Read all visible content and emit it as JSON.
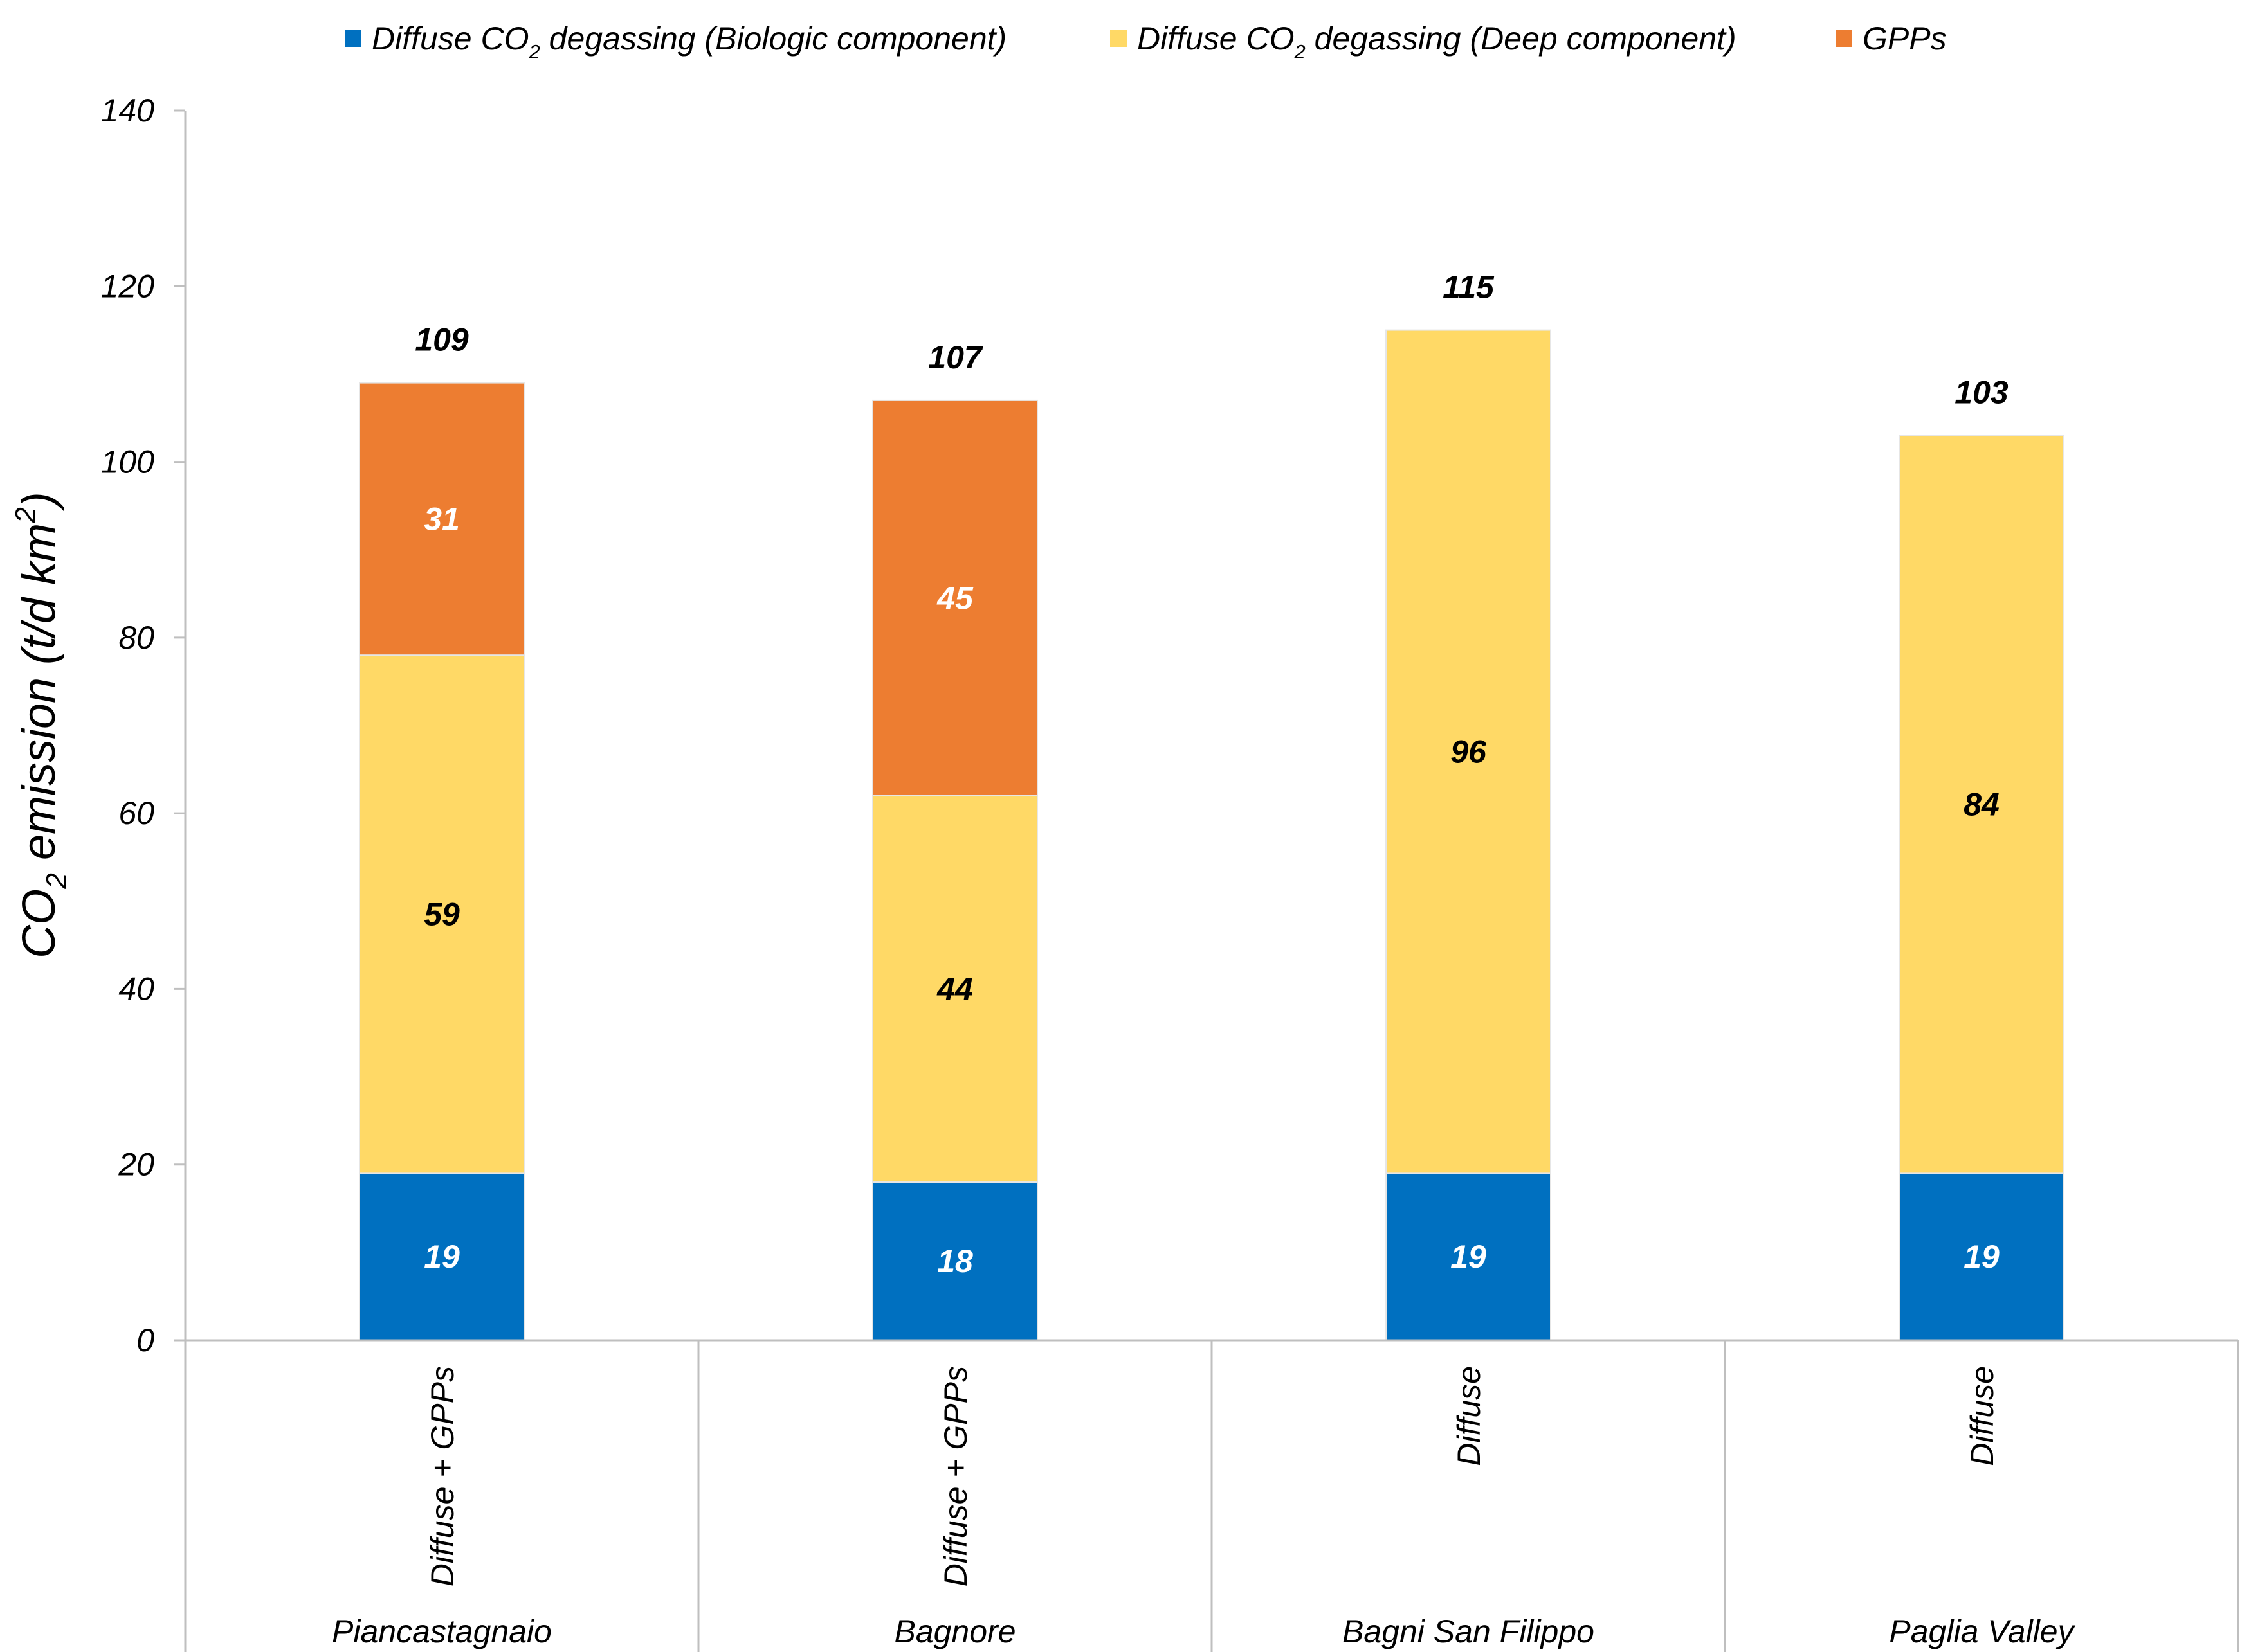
{
  "chart_data": {
    "type": "bar",
    "stacked": true,
    "title": "",
    "xlabel": "",
    "ylabel": {
      "prefix": "CO",
      "subscript": "2",
      "middle": " emission (t/d km",
      "superscript": "2",
      "suffix": ")"
    },
    "ylim": [
      0,
      140
    ],
    "yticks": [
      0,
      20,
      40,
      60,
      80,
      100,
      120,
      140
    ],
    "grid": false,
    "legend_position": "top",
    "categories": [
      "Piancastagnaio",
      "Bagnore",
      "Bagni San Filippo",
      "Paglia Valley"
    ],
    "sub_categories": [
      "Diffuse + GPPs",
      "Diffuse + GPPs",
      "Diffuse",
      "Diffuse"
    ],
    "series": [
      {
        "name": "Diffuse CO2 degassing (Biologic component)",
        "legend_parts": {
          "before": "Diffuse CO",
          "subscript": "2",
          "after": " degassing (Biologic component)"
        },
        "color": "#0070C0",
        "label_color": "#ffffff",
        "values": [
          19,
          18,
          19,
          19
        ]
      },
      {
        "name": "Diffuse CO2 degassing (Deep component)",
        "legend_parts": {
          "before": "Diffuse CO",
          "subscript": "2",
          "after": " degassing (Deep component)"
        },
        "color": "#FFD966",
        "label_color": "#000000",
        "values": [
          59,
          44,
          96,
          84
        ]
      },
      {
        "name": "GPPs",
        "legend_parts": {
          "before": "GPPs",
          "subscript": "",
          "after": ""
        },
        "color": "#ED7D31",
        "label_color": "#ffffff",
        "values": [
          31,
          45,
          0,
          0
        ]
      }
    ],
    "totals": [
      109,
      107,
      115,
      103
    ]
  }
}
